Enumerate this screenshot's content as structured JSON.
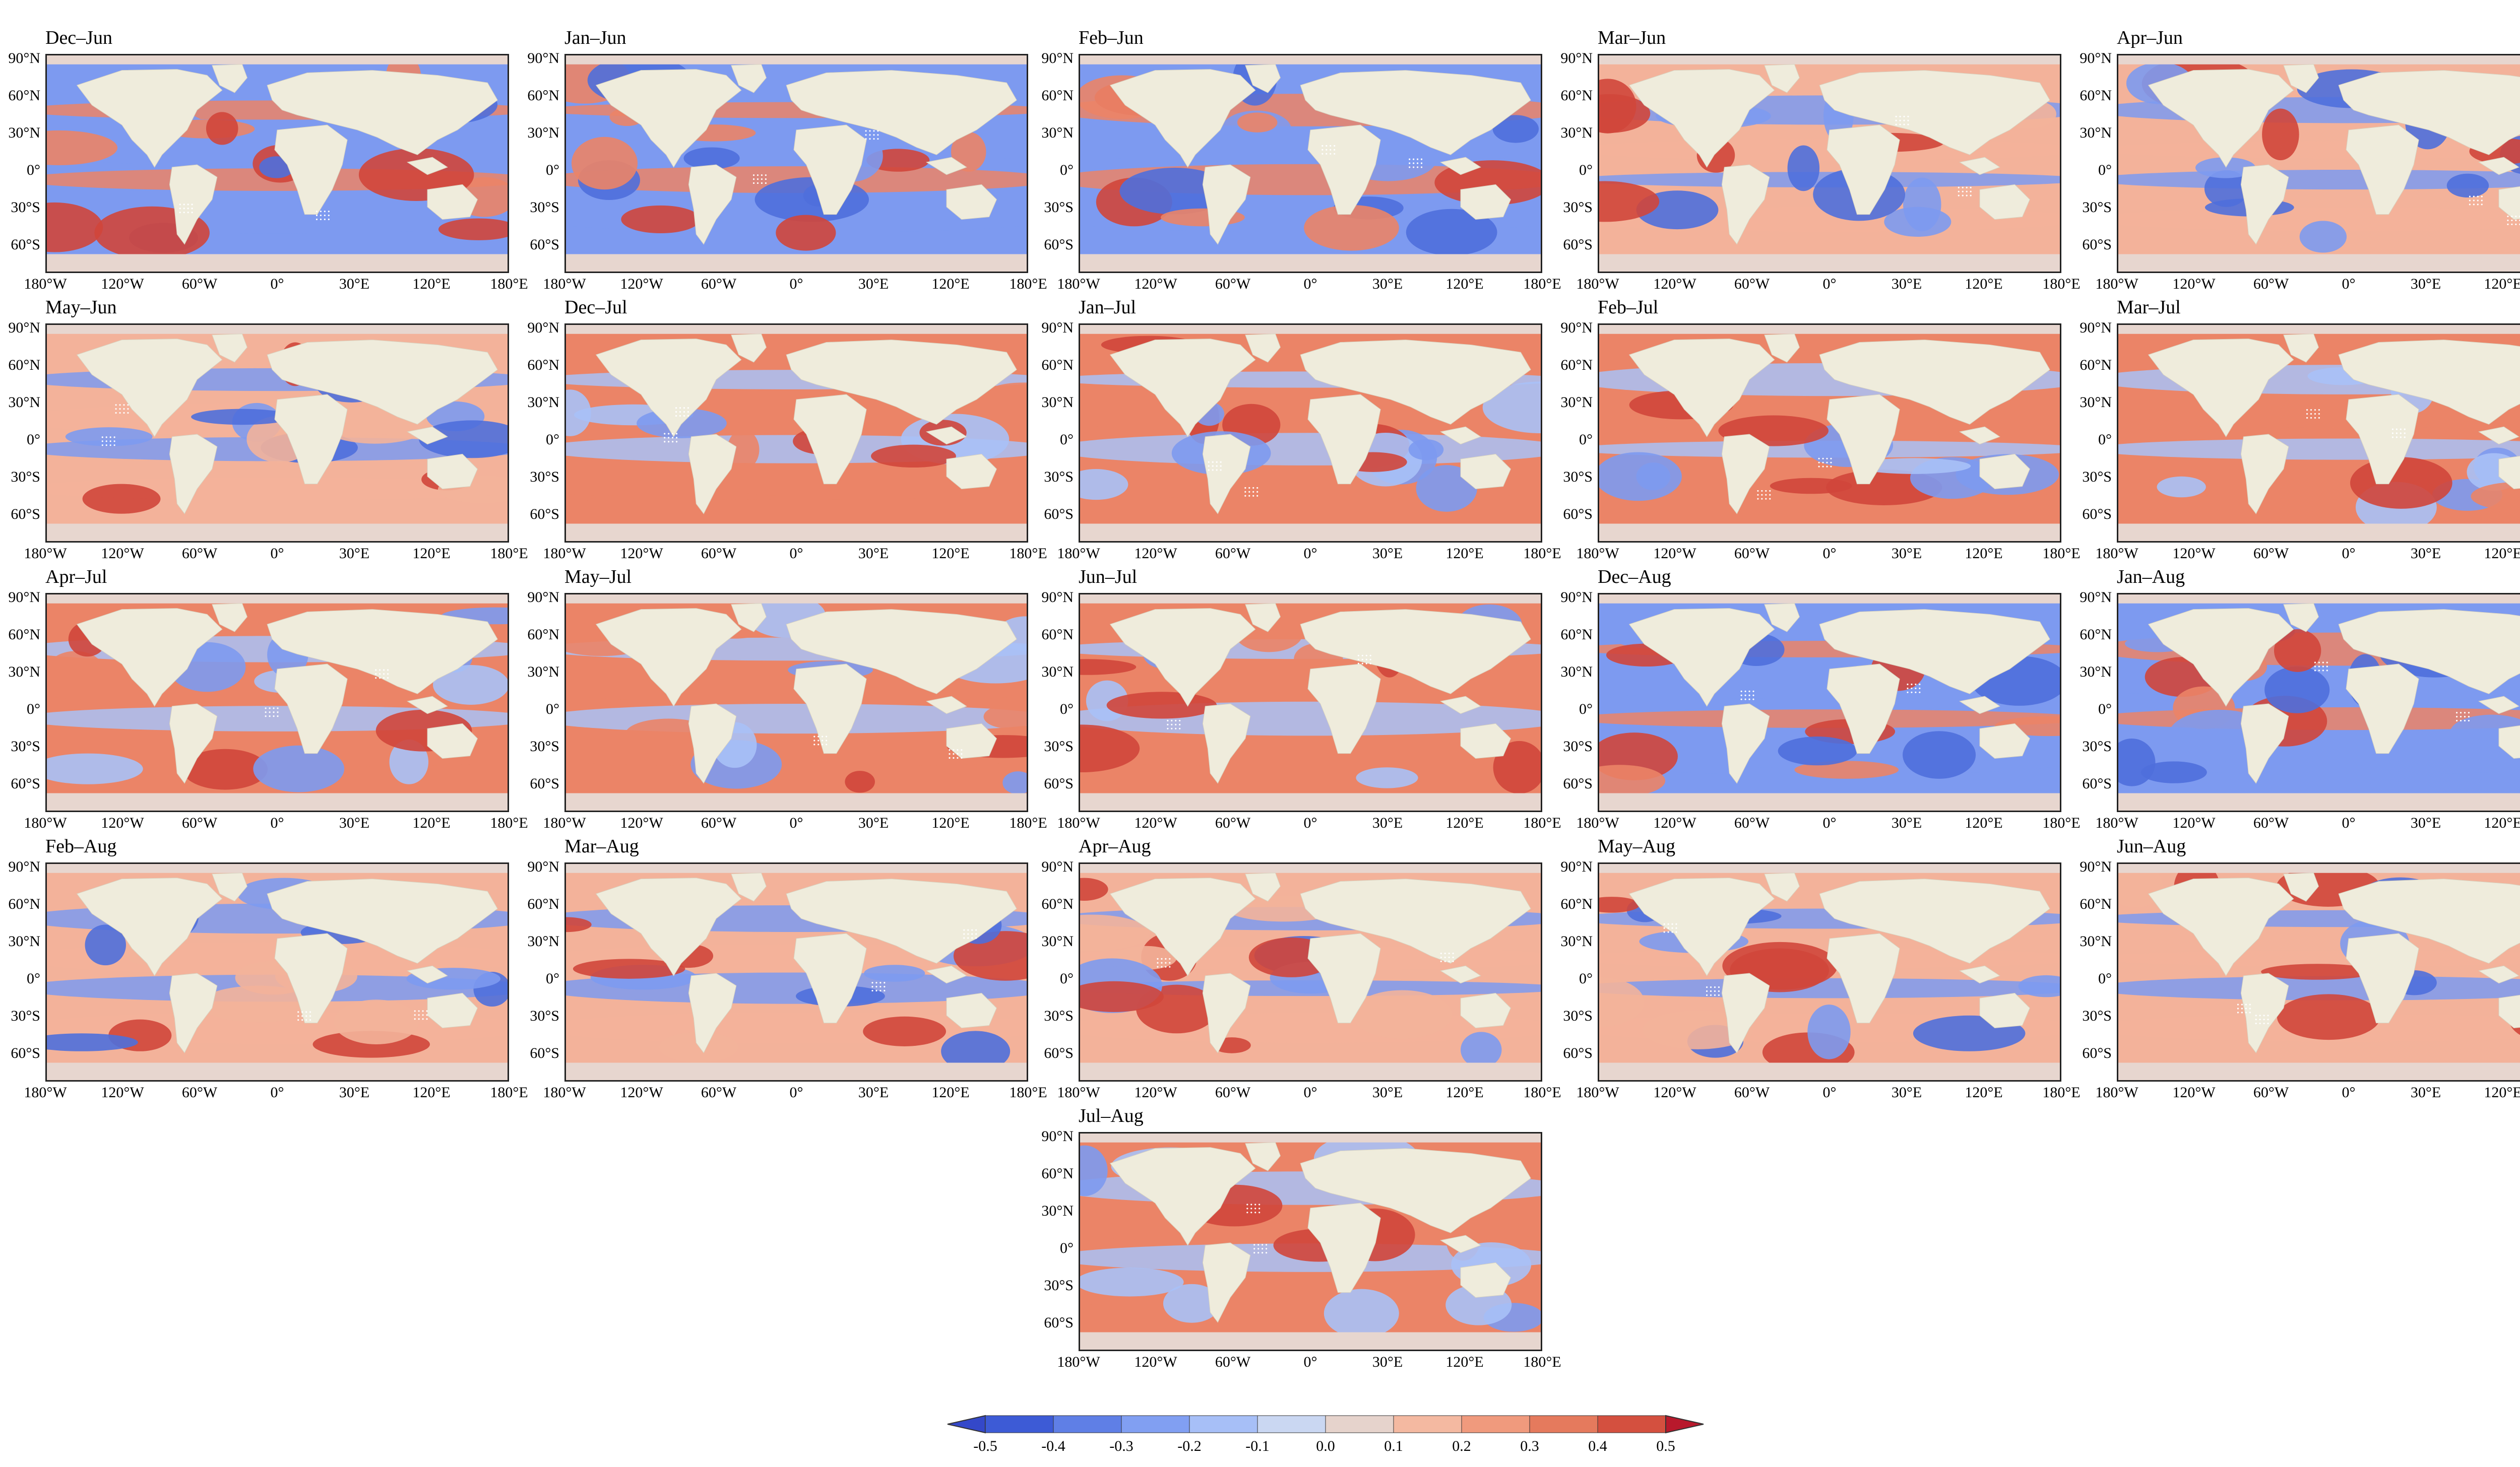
{
  "colors": {
    "ocean_neg_strong": "#4f6fdb",
    "ocean_neg": "#7d9af0",
    "ocean_neg_light": "#a9c1f7",
    "ocean_neutral": "#e6d3cc",
    "ocean_pos_light": "#f3b29a",
    "ocean_pos": "#eb8467",
    "ocean_pos_strong": "#d0463b",
    "land": "#efecdc",
    "polar": "#e7d6cf"
  },
  "lat_labels": [
    "90°N",
    "60°N",
    "30°N",
    "0°",
    "30°S",
    "60°S"
  ],
  "lon_labels": [
    "180°W",
    "120°W",
    "60°W",
    "0°",
    "30°E",
    "120°E",
    "180°E"
  ],
  "panels": [
    {
      "title": "Dec–Jun",
      "sign": -1
    },
    {
      "title": "Jan–Jun",
      "sign": -1
    },
    {
      "title": "Feb–Jun",
      "sign": -1
    },
    {
      "title": "Mar–Jun",
      "sign": 0
    },
    {
      "title": "Apr–Jun",
      "sign": 0
    },
    {
      "title": "May–Jun",
      "sign": 0
    },
    {
      "title": "Dec–Jul",
      "sign": 1
    },
    {
      "title": "Jan–Jul",
      "sign": 1
    },
    {
      "title": "Feb–Jul",
      "sign": 1
    },
    {
      "title": "Mar–Jul",
      "sign": 1
    },
    {
      "title": "Apr–Jul",
      "sign": 2
    },
    {
      "title": "May–Jul",
      "sign": 2
    },
    {
      "title": "Jun–Jul",
      "sign": 2
    },
    {
      "title": "Dec–Aug",
      "sign": -1
    },
    {
      "title": "Jan–Aug",
      "sign": -1
    },
    {
      "title": "Feb–Aug",
      "sign": 0
    },
    {
      "title": "Mar–Aug",
      "sign": 0
    },
    {
      "title": "Apr–Aug",
      "sign": 0
    },
    {
      "title": "May–Aug",
      "sign": 0
    },
    {
      "title": "Jun–Aug",
      "sign": 0
    },
    {
      "title": "Jul–Aug",
      "sign": 1
    }
  ],
  "colorbar": {
    "ticks": [
      "-0.5",
      "-0.4",
      "-0.3",
      "-0.2",
      "-0.1",
      "0.0",
      "0.1",
      "0.2",
      "0.3",
      "0.4",
      "0.5"
    ],
    "colors": [
      "#3d5bd6",
      "#5f7fe6",
      "#819ff2",
      "#a7bff7",
      "#cad7f2",
      "#e6d3cc",
      "#f4b9a1",
      "#f09a7d",
      "#e57a5d",
      "#d4503f"
    ],
    "extend_low": "#3448c9",
    "extend_high": "#b8192c"
  }
}
